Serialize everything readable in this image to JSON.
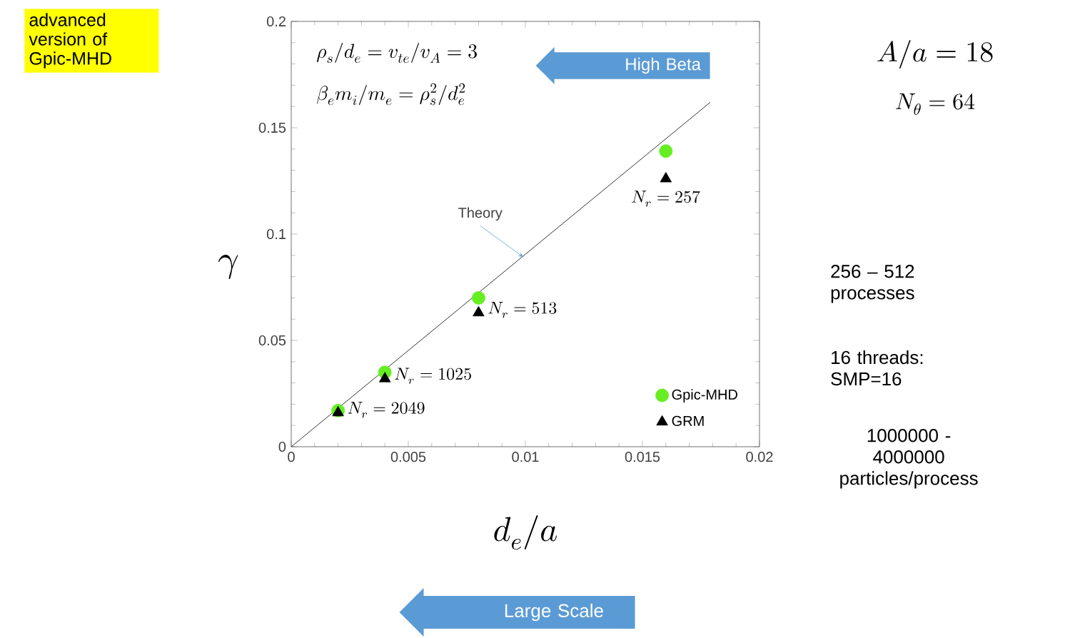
{
  "chart_data": {
    "type": "scatter",
    "xlabel": "d_e / a",
    "ylabel": "\\gamma",
    "xlim": [
      0,
      0.02
    ],
    "ylim": [
      0,
      0.2
    ],
    "xticks": [
      0,
      0.005,
      0.01,
      0.015,
      0.02
    ],
    "yticks": [
      0,
      0.05,
      0.1,
      0.15,
      0.2
    ],
    "grid": false,
    "legend": "bottom right",
    "series": [
      {
        "name": "Gpic-MHD",
        "color": "#66ee22",
        "marker": "circle",
        "x": [
          0.002,
          0.004,
          0.008,
          0.016
        ],
        "values": [
          0.017,
          0.035,
          0.07,
          0.139
        ]
      },
      {
        "name": "GRM",
        "color": "#000000",
        "marker": "triangle",
        "x": [
          0.002,
          0.004,
          0.008,
          0.016
        ],
        "values": [
          0.016,
          0.032,
          0.063,
          0.126
        ]
      },
      {
        "type": "line",
        "color": "#000000",
        "marker": "none",
        "x": [
          0,
          0.0179
        ],
        "values": [
          0,
          0.162
        ]
      }
    ],
    "annotations": [
      "advanced version of Gpic-MHD",
      "\\rho_s / d_e = v_{te} / v_A = 3",
      "\\beta_e m_i / m_e = \\rho_s^2 / d_e^2",
      "High Beta",
      {
        "text": "Theory",
        "x": 0.0099,
        "y": 0.0893
      },
      {
        "text": "N_r = 257",
        "x": 0.016,
        "y": 0.126
      },
      {
        "text": "N_r = 513",
        "x": 0.008,
        "y": 0.063
      },
      {
        "text": "N_r = 1025",
        "x": 0.004,
        "y": 0.032
      },
      {
        "text": "N_r = 2049",
        "x": 0.002,
        "y": 0.016
      },
      "A / a = 18",
      "N_\\theta = 64",
      "256 – 512 processes",
      "16 threads: SMP=16",
      "1000000 - 4000000 particles/process",
      "Large Scale"
    ]
  }
}
